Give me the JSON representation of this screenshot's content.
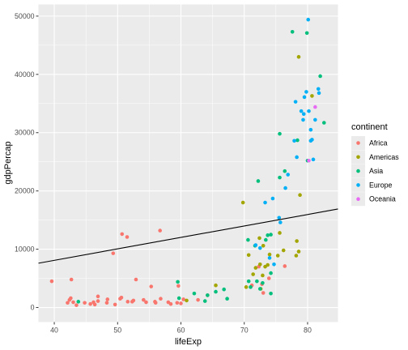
{
  "chart_data": {
    "type": "scatter",
    "xlabel": "lifeExp",
    "ylabel": "gdpPercap",
    "xlim": [
      37.5,
      84.8
    ],
    "ylim": [
      -2500,
      52000
    ],
    "x_ticks": [
      40,
      50,
      60,
      70,
      80
    ],
    "y_ticks": [
      0,
      10000,
      20000,
      30000,
      40000,
      50000
    ],
    "x_tick_labels": [
      "40",
      "50",
      "60",
      "70",
      "80"
    ],
    "y_tick_labels": [
      "0",
      "10000",
      "20000",
      "30000",
      "40000",
      "50000"
    ],
    "grid": true,
    "background": "#ebebeb",
    "legend": {
      "title": "continent",
      "position": "right",
      "entries": [
        "Africa",
        "Americas",
        "Asia",
        "Europe",
        "Oceania"
      ]
    },
    "colors": {
      "Africa": "#f8766d",
      "Americas": "#a3a500",
      "Asia": "#00bf7d",
      "Europe": "#00b0f6",
      "Oceania": "#e76bf3"
    },
    "trend_line": {
      "type": "linear",
      "x": [
        37.5,
        84.8
      ],
      "y": [
        7600,
        16900
      ]
    },
    "series": [
      {
        "name": "Africa",
        "points": [
          [
            39.6,
            4500
          ],
          [
            42.1,
            800
          ],
          [
            42.4,
            1300
          ],
          [
            42.6,
            1600
          ],
          [
            42.7,
            4800
          ],
          [
            43.0,
            900
          ],
          [
            43.5,
            400
          ],
          [
            44.8,
            800
          ],
          [
            45.7,
            600
          ],
          [
            46.2,
            900
          ],
          [
            46.4,
            500
          ],
          [
            46.9,
            1100
          ],
          [
            46.9,
            1900
          ],
          [
            48.3,
            800
          ],
          [
            48.4,
            1400
          ],
          [
            49.3,
            9300
          ],
          [
            49.6,
            500
          ],
          [
            50.4,
            1500
          ],
          [
            50.6,
            1700
          ],
          [
            50.7,
            12600
          ],
          [
            51.5,
            12100
          ],
          [
            51.6,
            1000
          ],
          [
            52.3,
            1000
          ],
          [
            52.5,
            1200
          ],
          [
            52.9,
            4800
          ],
          [
            54.1,
            1300
          ],
          [
            54.5,
            900
          ],
          [
            55.3,
            3600
          ],
          [
            55.9,
            1000
          ],
          [
            56.0,
            800
          ],
          [
            56.7,
            13200
          ],
          [
            56.8,
            1500
          ],
          [
            58.0,
            900
          ],
          [
            58.4,
            600
          ],
          [
            59.4,
            800
          ],
          [
            59.6,
            3700
          ],
          [
            60.0,
            700
          ],
          [
            60.4,
            1400
          ],
          [
            62.7,
            1300
          ],
          [
            64.2,
            2100
          ],
          [
            71.2,
            3800
          ],
          [
            72.3,
            7000
          ],
          [
            72.8,
            4000
          ],
          [
            73.0,
            2500
          ],
          [
            73.9,
            5000
          ],
          [
            76.4,
            7100
          ]
        ]
      },
      {
        "name": "Americas",
        "points": [
          [
            60.9,
            1200
          ],
          [
            65.5,
            3800
          ],
          [
            69.8,
            18000
          ],
          [
            70.3,
            3500
          ],
          [
            70.7,
            9000
          ],
          [
            71.4,
            5700
          ],
          [
            71.8,
            6800
          ],
          [
            72.4,
            11900
          ],
          [
            72.5,
            7400
          ],
          [
            72.6,
            3200
          ],
          [
            72.9,
            5500
          ],
          [
            73.0,
            10600
          ],
          [
            73.3,
            7000
          ],
          [
            73.7,
            7300
          ],
          [
            74.0,
            9100
          ],
          [
            75.3,
            8900
          ],
          [
            75.6,
            12800
          ],
          [
            76.2,
            9800
          ],
          [
            78.2,
            8900
          ],
          [
            78.3,
            11400
          ],
          [
            78.6,
            9600
          ],
          [
            78.8,
            19300
          ],
          [
            78.6,
            43000
          ],
          [
            80.7,
            36300
          ]
        ]
      },
      {
        "name": "Asia",
        "points": [
          [
            43.8,
            1000
          ],
          [
            59.5,
            4400
          ],
          [
            59.7,
            1600
          ],
          [
            62.1,
            2400
          ],
          [
            63.8,
            1100
          ],
          [
            64.2,
            2100
          ],
          [
            65.5,
            2700
          ],
          [
            66.8,
            3100
          ],
          [
            67.3,
            1500
          ],
          [
            70.6,
            11600
          ],
          [
            70.7,
            4500
          ],
          [
            71.0,
            3500
          ],
          [
            71.7,
            10600
          ],
          [
            72.0,
            4500
          ],
          [
            72.2,
            21700
          ],
          [
            72.5,
            3200
          ],
          [
            72.9,
            4200
          ],
          [
            73.4,
            11600
          ],
          [
            73.7,
            12400
          ],
          [
            74.2,
            2400
          ],
          [
            74.2,
            5900
          ],
          [
            74.2,
            12500
          ],
          [
            75.6,
            29800
          ],
          [
            75.6,
            22300
          ],
          [
            76.4,
            23400
          ],
          [
            77.6,
            47300
          ],
          [
            78.4,
            28700
          ],
          [
            79.9,
            47100
          ],
          [
            80.0,
            25200
          ],
          [
            82.0,
            39700
          ],
          [
            82.6,
            31700
          ]
        ]
      },
      {
        "name": "Europe",
        "points": [
          [
            71.8,
            10700
          ],
          [
            72.5,
            10200
          ],
          [
            73.3,
            18000
          ],
          [
            74.0,
            8500
          ],
          [
            74.5,
            18700
          ],
          [
            74.7,
            7400
          ],
          [
            75.5,
            15400
          ],
          [
            75.7,
            14600
          ],
          [
            76.5,
            20500
          ],
          [
            76.9,
            22800
          ],
          [
            77.9,
            28600
          ],
          [
            78.1,
            35300
          ],
          [
            78.3,
            25800
          ],
          [
            79.0,
            33700
          ],
          [
            79.3,
            32200
          ],
          [
            79.4,
            33200
          ],
          [
            79.5,
            36100
          ],
          [
            79.8,
            37000
          ],
          [
            80.1,
            49400
          ],
          [
            80.2,
            33700
          ],
          [
            80.5,
            30500
          ],
          [
            80.5,
            28600
          ],
          [
            80.7,
            28800
          ],
          [
            80.9,
            25400
          ],
          [
            81.2,
            32200
          ],
          [
            81.7,
            37500
          ],
          [
            81.8,
            36800
          ]
        ]
      },
      {
        "name": "Oceania",
        "points": [
          [
            80.2,
            25200
          ],
          [
            81.2,
            34400
          ]
        ]
      }
    ]
  }
}
